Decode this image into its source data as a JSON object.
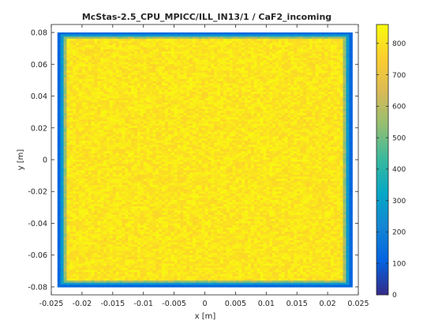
{
  "chart_data": {
    "type": "heatmap",
    "title": "McStas-2.5_CPU_MPICC/ILL_IN13/1 / CaF2_incoming",
    "xlabel": "x [m]",
    "ylabel": "y [m]",
    "xlim": [
      -0.025,
      0.025
    ],
    "ylim": [
      -0.085,
      0.085
    ],
    "x_ticks": [
      "-0.025",
      "-0.02",
      "-0.015",
      "-0.01",
      "-0.005",
      "0",
      "0.005",
      "0.01",
      "0.015",
      "0.02",
      "0.025"
    ],
    "x_tick_values": [
      -0.025,
      -0.02,
      -0.015,
      -0.01,
      -0.005,
      0,
      0.005,
      0.01,
      0.015,
      0.02,
      0.025
    ],
    "y_ticks": [
      "0.08",
      "0.06",
      "0.04",
      "0.02",
      "0",
      "-0.02",
      "-0.04",
      "-0.06",
      "-0.08"
    ],
    "y_tick_values": [
      0.08,
      0.06,
      0.04,
      0.02,
      0,
      -0.02,
      -0.04,
      -0.06,
      -0.08
    ],
    "grid": false,
    "colormap": "parula",
    "colorbar": {
      "range": [
        0,
        860
      ],
      "ticks": [
        "800",
        "700",
        "600",
        "500",
        "400",
        "300",
        "200",
        "100",
        "0"
      ],
      "tick_values": [
        800,
        700,
        600,
        500,
        400,
        300,
        200,
        100,
        0
      ]
    },
    "field": {
      "description": "uniform rectangular beam footprint",
      "x_extent": [
        -0.024,
        0.024
      ],
      "y_extent": [
        -0.08,
        0.08
      ],
      "interior_level": 810,
      "edge_levels": [
        120,
        280,
        560
      ]
    }
  }
}
